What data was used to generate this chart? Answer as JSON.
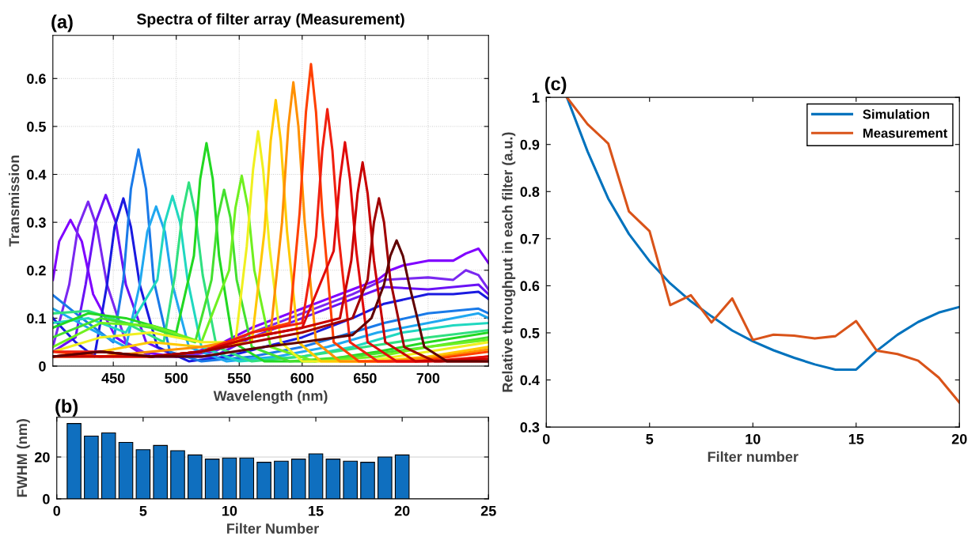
{
  "chart_data": [
    {
      "type": "line",
      "title": "Spectra of filter array (Measurement)",
      "xlabel": "Wavelength (nm)",
      "ylabel": "Transmission",
      "annotations": [
        "(a)"
      ],
      "xlim": [
        402,
        748
      ],
      "xticks": [
        450,
        500,
        550,
        600,
        650,
        700
      ],
      "ylim": [
        0,
        0.69
      ],
      "yticks": [
        0,
        0.1,
        0.2,
        0.3,
        0.4,
        0.5,
        0.6
      ],
      "grid": true,
      "series": [
        {
          "color": "#8000ff",
          "x": [
            402,
            407,
            416,
            425,
            434,
            452,
            470,
            500,
            530,
            560,
            580,
            600,
            620,
            640,
            660,
            670,
            680,
            700,
            720,
            730,
            740,
            748
          ],
          "values": [
            0.18,
            0.26,
            0.305,
            0.26,
            0.15,
            0.06,
            0.03,
            0.02,
            0.04,
            0.08,
            0.1,
            0.12,
            0.14,
            0.16,
            0.18,
            0.2,
            0.21,
            0.22,
            0.22,
            0.235,
            0.245,
            0.215
          ]
        },
        {
          "color": "#7a28f0",
          "x": [
            402,
            415,
            422,
            430,
            437,
            445,
            460,
            480,
            500,
            530,
            560,
            600,
            640,
            665,
            700,
            720,
            730,
            740,
            748
          ],
          "values": [
            0.04,
            0.17,
            0.29,
            0.343,
            0.29,
            0.17,
            0.05,
            0.02,
            0.02,
            0.03,
            0.07,
            0.11,
            0.15,
            0.18,
            0.185,
            0.18,
            0.2,
            0.19,
            0.16
          ]
        },
        {
          "color": "#6a12f5",
          "x": [
            402,
            420,
            428,
            436,
            444,
            452,
            460,
            476,
            500,
            530,
            560,
            600,
            640,
            665,
            700,
            740,
            748
          ],
          "values": [
            0.03,
            0.06,
            0.17,
            0.3,
            0.357,
            0.3,
            0.17,
            0.05,
            0.02,
            0.02,
            0.06,
            0.1,
            0.14,
            0.165,
            0.16,
            0.17,
            0.15
          ]
        },
        {
          "color": "#1a1ae0",
          "x": [
            402,
            420,
            435,
            445,
            451,
            458,
            464,
            471,
            485,
            510,
            540,
            570,
            600,
            640,
            665,
            700,
            720,
            740,
            748
          ],
          "values": [
            0.1,
            0.05,
            0.02,
            0.17,
            0.29,
            0.35,
            0.29,
            0.17,
            0.04,
            0.01,
            0.02,
            0.04,
            0.06,
            0.1,
            0.13,
            0.15,
            0.15,
            0.155,
            0.14
          ]
        },
        {
          "color": "#1a7ae8",
          "x": [
            402,
            425,
            450,
            458,
            464,
            470,
            476,
            482,
            495,
            520,
            560,
            600,
            640,
            665,
            700,
            740,
            748
          ],
          "values": [
            0.148,
            0.1,
            0.05,
            0.18,
            0.37,
            0.452,
            0.37,
            0.18,
            0.03,
            0.01,
            0.02,
            0.04,
            0.07,
            0.09,
            0.11,
            0.12,
            0.11
          ]
        },
        {
          "color": "#20a8f0",
          "x": [
            402,
            430,
            460,
            471,
            477,
            484,
            491,
            497,
            510,
            540,
            580,
            620,
            660,
            700,
            740,
            748
          ],
          "values": [
            0.12,
            0.08,
            0.04,
            0.17,
            0.28,
            0.333,
            0.28,
            0.17,
            0.04,
            0.01,
            0.02,
            0.04,
            0.07,
            0.09,
            0.11,
            0.1
          ]
        },
        {
          "color": "#20d8c0",
          "x": [
            402,
            430,
            460,
            485,
            491,
            497,
            503,
            509,
            520,
            550,
            600,
            640,
            680,
            720,
            748
          ],
          "values": [
            0.09,
            0.1,
            0.07,
            0.18,
            0.3,
            0.355,
            0.3,
            0.18,
            0.04,
            0.01,
            0.02,
            0.04,
            0.07,
            0.085,
            0.09
          ]
        },
        {
          "color": "#30e080",
          "x": [
            402,
            430,
            460,
            490,
            499,
            505,
            510,
            515,
            521,
            532,
            560,
            600,
            650,
            700,
            748
          ],
          "values": [
            0.11,
            0.115,
            0.09,
            0.05,
            0.19,
            0.32,
            0.383,
            0.32,
            0.19,
            0.04,
            0.01,
            0.02,
            0.04,
            0.06,
            0.075
          ]
        },
        {
          "color": "#22d822",
          "x": [
            402,
            430,
            460,
            500,
            514,
            519,
            524,
            529,
            534,
            545,
            570,
            610,
            660,
            700,
            748
          ],
          "values": [
            0.08,
            0.11,
            0.1,
            0.07,
            0.23,
            0.39,
            0.465,
            0.39,
            0.23,
            0.05,
            0.01,
            0.01,
            0.03,
            0.05,
            0.07
          ]
        },
        {
          "color": "#44e030",
          "x": [
            402,
            440,
            480,
            515,
            528,
            533,
            538,
            543,
            548,
            560,
            590,
            640,
            700,
            748
          ],
          "values": [
            0.06,
            0.1,
            0.08,
            0.05,
            0.18,
            0.31,
            0.368,
            0.31,
            0.18,
            0.04,
            0.01,
            0.02,
            0.04,
            0.06
          ]
        },
        {
          "color": "#70f020",
          "x": [
            402,
            440,
            480,
            520,
            542,
            547,
            552,
            557,
            562,
            575,
            610,
            660,
            700,
            748
          ],
          "values": [
            0.04,
            0.09,
            0.085,
            0.05,
            0.2,
            0.33,
            0.397,
            0.33,
            0.2,
            0.04,
            0.01,
            0.02,
            0.04,
            0.055
          ]
        },
        {
          "color": "#f0f020",
          "x": [
            402,
            440,
            480,
            520,
            547,
            556,
            561,
            565,
            569,
            574,
            583,
            600,
            650,
            700,
            748
          ],
          "values": [
            0.03,
            0.06,
            0.07,
            0.05,
            0.05,
            0.25,
            0.41,
            0.49,
            0.41,
            0.25,
            0.05,
            0.01,
            0.01,
            0.03,
            0.05
          ]
        },
        {
          "color": "#ffc800",
          "x": [
            402,
            440,
            480,
            520,
            560,
            570,
            575,
            579,
            583,
            588,
            597,
            615,
            660,
            700,
            748
          ],
          "values": [
            0.02,
            0.03,
            0.05,
            0.04,
            0.05,
            0.28,
            0.47,
            0.555,
            0.47,
            0.28,
            0.05,
            0.01,
            0.01,
            0.02,
            0.04
          ]
        },
        {
          "color": "#ff9000",
          "x": [
            402,
            440,
            480,
            520,
            560,
            575,
            584,
            589,
            593,
            597,
            602,
            611,
            630,
            670,
            710,
            748
          ],
          "values": [
            0.02,
            0.02,
            0.03,
            0.04,
            0.06,
            0.07,
            0.3,
            0.5,
            0.592,
            0.5,
            0.3,
            0.05,
            0.01,
            0.01,
            0.02,
            0.035
          ]
        },
        {
          "color": "#ff4000",
          "x": [
            402,
            440,
            480,
            520,
            560,
            590,
            598,
            603,
            607,
            611,
            616,
            625,
            645,
            690,
            748
          ],
          "values": [
            0.03,
            0.02,
            0.02,
            0.03,
            0.07,
            0.09,
            0.32,
            0.53,
            0.63,
            0.53,
            0.32,
            0.05,
            0.01,
            0.01,
            0.03
          ]
        },
        {
          "color": "#f02010",
          "x": [
            402,
            440,
            480,
            520,
            560,
            600,
            611,
            616,
            620,
            624,
            629,
            638,
            660,
            700,
            748
          ],
          "values": [
            0.03,
            0.03,
            0.02,
            0.03,
            0.07,
            0.09,
            0.27,
            0.45,
            0.536,
            0.45,
            0.27,
            0.05,
            0.01,
            0.01,
            0.02
          ]
        },
        {
          "color": "#e00a0a",
          "x": [
            402,
            440,
            480,
            520,
            560,
            600,
            625,
            630,
            634,
            638,
            643,
            652,
            675,
            710,
            748
          ],
          "values": [
            0.02,
            0.03,
            0.02,
            0.03,
            0.06,
            0.08,
            0.24,
            0.39,
            0.467,
            0.39,
            0.24,
            0.05,
            0.01,
            0.01,
            0.02
          ]
        },
        {
          "color": "#c80000",
          "x": [
            402,
            440,
            480,
            520,
            560,
            600,
            630,
            639,
            644,
            648,
            652,
            657,
            666,
            690,
            748
          ],
          "values": [
            0.02,
            0.02,
            0.02,
            0.03,
            0.06,
            0.08,
            0.1,
            0.22,
            0.36,
            0.425,
            0.36,
            0.22,
            0.05,
            0.01,
            0.015
          ]
        },
        {
          "color": "#a00000",
          "x": [
            402,
            440,
            480,
            520,
            560,
            600,
            640,
            652,
            657,
            661,
            665,
            670,
            681,
            705,
            748
          ],
          "values": [
            0.02,
            0.03,
            0.02,
            0.03,
            0.05,
            0.07,
            0.1,
            0.18,
            0.3,
            0.35,
            0.3,
            0.18,
            0.04,
            0.01,
            0.01
          ]
        },
        {
          "color": "#600000",
          "x": [
            402,
            440,
            480,
            520,
            570,
            600,
            640,
            655,
            665,
            670,
            675,
            680,
            685,
            697,
            715,
            748
          ],
          "values": [
            0.02,
            0.03,
            0.02,
            0.02,
            0.04,
            0.05,
            0.065,
            0.1,
            0.17,
            0.23,
            0.262,
            0.23,
            0.17,
            0.04,
            0.01,
            0.01
          ]
        }
      ]
    },
    {
      "type": "bar",
      "xlabel": "Filter Number",
      "ylabel": "FWHM (nm)",
      "annotations": [
        "(b)"
      ],
      "color": "#0f6fbf",
      "x": [
        1,
        2,
        3,
        4,
        5,
        6,
        7,
        8,
        9,
        10,
        11,
        12,
        13,
        14,
        15,
        16,
        17,
        18,
        19,
        20
      ],
      "values": [
        36,
        30,
        31.5,
        27,
        23.5,
        25.5,
        23,
        21,
        19,
        19.5,
        19.5,
        17.5,
        18,
        19,
        21.5,
        19,
        18,
        17.5,
        20,
        21
      ],
      "xlim": [
        0,
        25
      ],
      "xticks": [
        0,
        5,
        10,
        15,
        20,
        25
      ],
      "ylim": [
        0,
        39
      ],
      "yticks": [
        0,
        20
      ],
      "grid": "y"
    },
    {
      "type": "line",
      "xlabel": "Filter number",
      "ylabel": "Relative throughput in each filter (a.u.)",
      "annotations": [
        "(c)"
      ],
      "x": [
        1,
        2,
        3,
        4,
        5,
        6,
        7,
        8,
        9,
        10,
        11,
        12,
        13,
        14,
        15,
        16,
        17,
        18,
        19,
        20
      ],
      "xlim": [
        0,
        20
      ],
      "xticks": [
        0,
        5,
        10,
        15,
        20
      ],
      "ylim": [
        0.3,
        1
      ],
      "yticks": [
        0.3,
        0.4,
        0.5,
        0.6,
        0.7,
        0.8,
        0.9,
        1
      ],
      "legend": "top right",
      "series": [
        {
          "name": "Simulation",
          "color": "#0072bd",
          "values": [
            1,
            0.885,
            0.785,
            0.71,
            0.652,
            0.605,
            0.567,
            0.535,
            0.505,
            0.482,
            0.463,
            0.447,
            0.433,
            0.422,
            0.422,
            0.462,
            0.496,
            0.523,
            0.543,
            0.555
          ]
        },
        {
          "name": "Measurement",
          "color": "#d95319",
          "values": [
            1,
            0.943,
            0.902,
            0.758,
            0.716,
            0.559,
            0.58,
            0.522,
            0.573,
            0.485,
            0.496,
            0.494,
            0.488,
            0.493,
            0.525,
            0.462,
            0.455,
            0.441,
            0.405,
            0.352
          ]
        }
      ]
    }
  ]
}
